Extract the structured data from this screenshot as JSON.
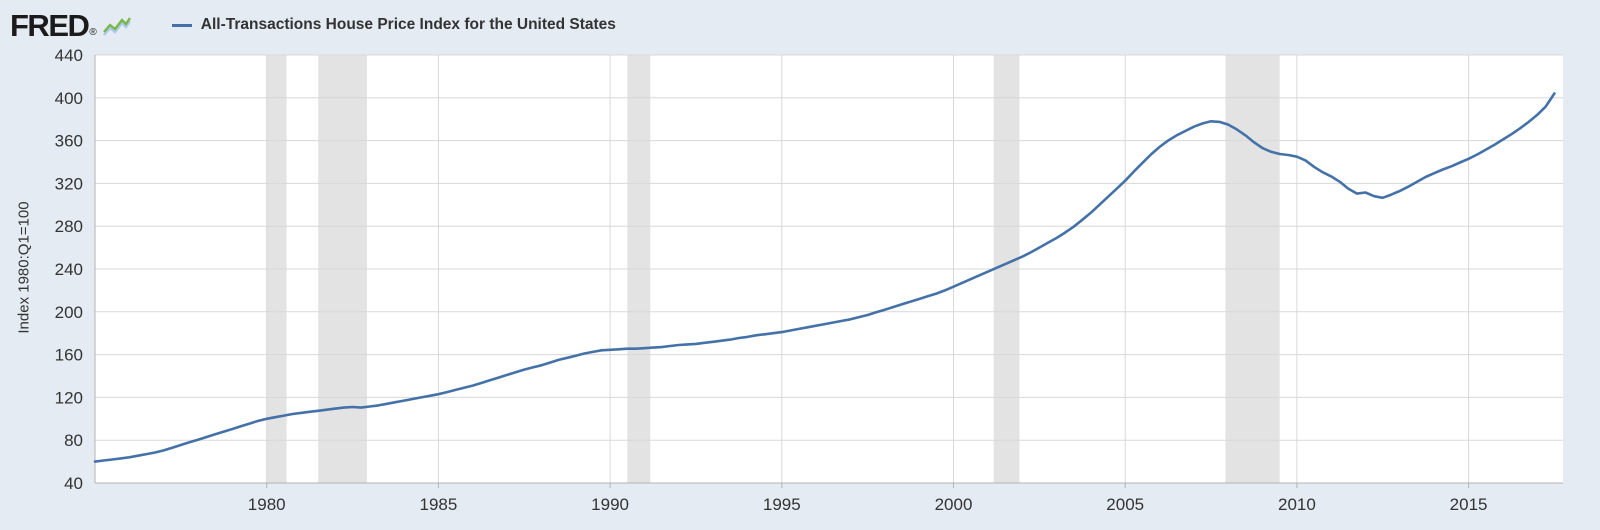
{
  "header": {
    "logo_text": "FRED",
    "registered_mark": "®",
    "legend_label": "All-Transactions House Price Index for the United States"
  },
  "colors": {
    "background": "#e4ebf2",
    "plot_background": "#ffffff",
    "recession_band": "#e3e3e3",
    "gridline": "#d8d8d8",
    "axis_line": "#b3b3b3",
    "axis_text": "#333333",
    "line": "#4472a8",
    "logo_spark_green": "#7ab648",
    "logo_spark_blue": "#a8c9e8"
  },
  "chart_data": {
    "type": "line",
    "title": "All-Transactions House Price Index for the United States",
    "xlabel": "",
    "ylabel": "Index 1980:Q1=100",
    "legend_position": "top-left",
    "grid": true,
    "xlim": [
      1975,
      2017.75
    ],
    "ylim": [
      40,
      440
    ],
    "yticks": [
      40,
      80,
      120,
      160,
      200,
      240,
      280,
      320,
      360,
      400,
      440
    ],
    "xticks": [
      1980,
      1985,
      1990,
      1995,
      2000,
      2005,
      2010,
      2015
    ],
    "recessions": [
      [
        1980.0,
        1980.58
      ],
      [
        1981.5,
        1982.92
      ],
      [
        1990.5,
        1991.17
      ],
      [
        2001.17,
        2001.92
      ],
      [
        2007.92,
        2009.5
      ]
    ],
    "x_start": 1975,
    "x_step": 0.25,
    "series": [
      {
        "name": "All-Transactions House Price Index for the United States",
        "color": "#4472a8",
        "values": [
          60,
          61,
          62,
          63,
          64,
          65.5,
          67,
          68.5,
          70.5,
          73,
          75.5,
          78,
          80.5,
          83,
          85.5,
          88,
          90.5,
          93,
          95.5,
          98,
          100,
          101.5,
          103,
          104.5,
          105.5,
          106.5,
          107.5,
          108.5,
          109.5,
          110.5,
          111,
          110.5,
          111.5,
          112.5,
          114,
          115.5,
          117,
          118.5,
          120,
          121.5,
          123,
          125,
          127,
          129,
          131,
          133.5,
          136,
          138.5,
          141,
          143.5,
          146,
          148,
          150,
          152.5,
          155,
          157,
          159,
          161,
          162.5,
          164,
          164.5,
          165,
          165.5,
          165.5,
          166,
          166.5,
          167,
          168,
          169,
          169.5,
          170,
          171,
          172,
          173,
          174,
          175.5,
          176.5,
          178,
          179,
          180,
          181,
          182.5,
          184,
          185.5,
          187,
          188.5,
          190,
          191.5,
          193,
          195,
          197,
          199.5,
          202,
          204.5,
          207,
          209.5,
          212,
          214.5,
          217,
          220,
          223.5,
          227,
          230.5,
          234,
          237.5,
          241,
          244.5,
          248,
          251.5,
          255.5,
          260,
          264.5,
          269,
          274,
          279.5,
          286,
          292.5,
          300,
          307.5,
          315,
          322.5,
          331,
          339,
          347,
          354,
          360,
          365,
          369,
          373,
          376,
          378,
          377.5,
          375,
          370.5,
          365,
          358.5,
          353,
          349.5,
          347.5,
          346.5,
          345,
          341.5,
          335.5,
          330.5,
          326.5,
          321.5,
          315,
          310.5,
          311.5,
          308,
          306.5,
          309.5,
          313,
          317,
          321.5,
          326,
          329.5,
          333,
          336,
          339.5,
          343,
          347,
          351.5,
          356,
          361,
          366,
          371.5,
          377.5,
          384,
          392,
          404
        ]
      }
    ]
  }
}
